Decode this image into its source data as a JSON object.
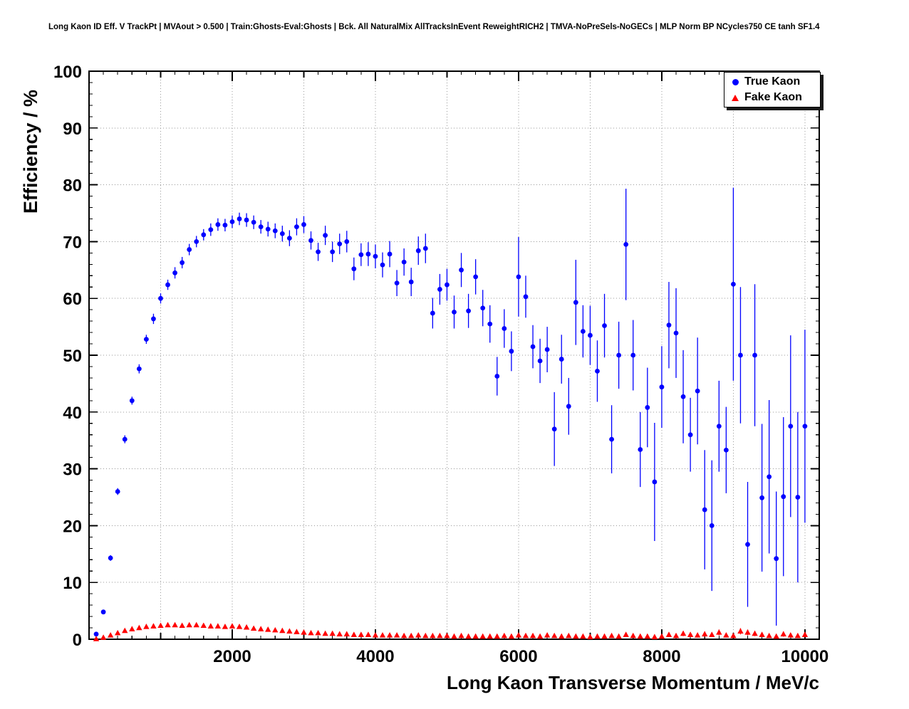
{
  "chart_data": {
    "type": "scatter",
    "title": "Long Kaon ID Eff. V TrackPt | MVAout > 0.500 | Train:Ghosts-Eval:Ghosts | Bck. All NaturalMix AllTracksInEvent ReweightRICH2 | TMVA-NoPreSels-NoGECs | MLP Norm BP NCycles750 CE tanh SF1.4",
    "xlabel": "Long Kaon Transverse Momentum / MeV/c",
    "ylabel": "Efficiency / %",
    "xlim": [
      0,
      10200
    ],
    "ylim": [
      0,
      100
    ],
    "x_ticks": [
      2000,
      4000,
      6000,
      8000,
      10000
    ],
    "y_ticks": [
      0,
      10,
      20,
      30,
      40,
      50,
      60,
      70,
      80,
      90,
      100
    ],
    "x_grid_step": 1000,
    "grid": true,
    "legend": {
      "position": "top-right",
      "entries": [
        {
          "label": "True Kaon",
          "marker": "circle",
          "color": "#0000ff"
        },
        {
          "label": "Fake Kaon",
          "marker": "triangle",
          "color": "#ff0000"
        }
      ]
    },
    "colors": {
      "true_kaon": "#0000ff",
      "fake_kaon": "#ff0000",
      "grid": "#999999",
      "frame": "#000000"
    },
    "series": [
      {
        "name": "True Kaon",
        "marker": "circle",
        "color": "#0000ff",
        "x": [
          100,
          200,
          300,
          400,
          500,
          600,
          700,
          800,
          900,
          1000,
          1100,
          1200,
          1300,
          1400,
          1500,
          1600,
          1700,
          1800,
          1900,
          2000,
          2100,
          2200,
          2300,
          2400,
          2500,
          2600,
          2700,
          2800,
          2900,
          3000,
          3100,
          3200,
          3300,
          3400,
          3500,
          3600,
          3700,
          3800,
          3900,
          4000,
          4100,
          4200,
          4300,
          4400,
          4500,
          4600,
          4700,
          4800,
          4900,
          5000,
          5100,
          5200,
          5300,
          5400,
          5500,
          5600,
          5700,
          5800,
          5900,
          6000,
          6100,
          6200,
          6300,
          6400,
          6500,
          6600,
          6700,
          6800,
          6900,
          7000,
          7100,
          7200,
          7300,
          7400,
          7500,
          7600,
          7700,
          7800,
          7900,
          8000,
          8100,
          8200,
          8300,
          8400,
          8500,
          8600,
          8700,
          8800,
          8900,
          9000,
          9100,
          9200,
          9300,
          9400,
          9500,
          9600,
          9700,
          9800,
          9900,
          10000
        ],
        "y": [
          0.9,
          4.8,
          14.3,
          26.0,
          35.2,
          42.0,
          47.6,
          52.8,
          56.4,
          60.0,
          62.4,
          64.5,
          66.3,
          68.6,
          70.0,
          71.2,
          72.1,
          73.0,
          72.9,
          73.5,
          74.0,
          73.8,
          73.4,
          72.6,
          72.2,
          71.9,
          71.4,
          70.6,
          72.6,
          73.0,
          70.2,
          68.2,
          71.1,
          68.2,
          69.6,
          70.0,
          65.2,
          67.7,
          67.8,
          67.4,
          65.9,
          67.8,
          62.7,
          66.4,
          62.9,
          68.4,
          68.8,
          57.4,
          61.6,
          62.4,
          57.6,
          65.0,
          57.8,
          63.8,
          58.3,
          55.5,
          46.3,
          54.7,
          50.7,
          63.8,
          60.3,
          51.5,
          49.0,
          51.0,
          37.0,
          49.3,
          41.0,
          59.3,
          54.2,
          53.5,
          47.2,
          55.2,
          35.2,
          50.0,
          69.5,
          50.0,
          33.4,
          40.8,
          27.7,
          44.4,
          55.3,
          53.9,
          42.7,
          36.0,
          43.7,
          22.8,
          20.0,
          37.5,
          33.3,
          62.5,
          50.0,
          16.7,
          50.0,
          24.9,
          28.6,
          14.2,
          25.1,
          37.5,
          25.0,
          37.5
        ],
        "yerr": [
          0.2,
          0.3,
          0.5,
          0.6,
          0.7,
          0.7,
          0.8,
          0.8,
          0.9,
          0.9,
          0.9,
          1.0,
          1.0,
          1.0,
          1.0,
          1.0,
          1.1,
          1.1,
          1.1,
          1.1,
          1.1,
          1.2,
          1.2,
          1.2,
          1.3,
          1.3,
          1.4,
          1.4,
          1.5,
          1.5,
          1.6,
          1.6,
          1.7,
          1.8,
          1.8,
          1.9,
          2.0,
          2.0,
          2.1,
          2.1,
          2.2,
          2.3,
          2.3,
          2.4,
          2.5,
          2.5,
          2.6,
          2.7,
          2.7,
          2.8,
          2.9,
          3.0,
          3.0,
          3.1,
          3.2,
          3.3,
          3.4,
          3.4,
          3.5,
          7.0,
          3.7,
          3.8,
          3.9,
          4.0,
          6.5,
          4.3,
          5.0,
          7.5,
          4.6,
          5.2,
          5.4,
          5.6,
          6.0,
          5.9,
          9.8,
          6.2,
          6.6,
          7.0,
          10.4,
          7.2,
          7.6,
          7.9,
          8.2,
          6.5,
          9.4,
          10.5,
          11.5,
          8.0,
          7.6,
          17.0,
          12.0,
          11.0,
          12.5,
          13.0,
          13.5,
          11.8,
          14.0,
          16.0,
          15.0,
          17.0
        ]
      },
      {
        "name": "Fake Kaon",
        "marker": "triangle",
        "color": "#ff0000",
        "x": [
          100,
          200,
          300,
          400,
          500,
          600,
          700,
          800,
          900,
          1000,
          1100,
          1200,
          1300,
          1400,
          1500,
          1600,
          1700,
          1800,
          1900,
          2000,
          2100,
          2200,
          2300,
          2400,
          2500,
          2600,
          2700,
          2800,
          2900,
          3000,
          3100,
          3200,
          3300,
          3400,
          3500,
          3600,
          3700,
          3800,
          3900,
          4000,
          4100,
          4200,
          4300,
          4400,
          4500,
          4600,
          4700,
          4800,
          4900,
          5000,
          5100,
          5200,
          5300,
          5400,
          5500,
          5600,
          5700,
          5800,
          5900,
          6000,
          6100,
          6200,
          6300,
          6400,
          6500,
          6600,
          6700,
          6800,
          6900,
          7000,
          7100,
          7200,
          7300,
          7400,
          7500,
          7600,
          7700,
          7800,
          7900,
          8000,
          8100,
          8200,
          8300,
          8400,
          8500,
          8600,
          8700,
          8800,
          8900,
          9000,
          9100,
          9200,
          9300,
          9400,
          9500,
          9600,
          9700,
          9800,
          9900,
          10000
        ],
        "y": [
          0.05,
          0.3,
          0.7,
          1.1,
          1.5,
          1.8,
          2.0,
          2.2,
          2.3,
          2.4,
          2.5,
          2.5,
          2.4,
          2.5,
          2.5,
          2.4,
          2.3,
          2.3,
          2.2,
          2.3,
          2.2,
          2.1,
          1.9,
          1.8,
          1.7,
          1.6,
          1.5,
          1.4,
          1.3,
          1.2,
          1.1,
          1.1,
          1.0,
          1.0,
          0.9,
          0.9,
          0.8,
          0.8,
          0.8,
          0.7,
          0.7,
          0.7,
          0.7,
          0.6,
          0.6,
          0.7,
          0.6,
          0.6,
          0.6,
          0.6,
          0.5,
          0.6,
          0.5,
          0.5,
          0.5,
          0.5,
          0.5,
          0.6,
          0.5,
          0.7,
          0.6,
          0.6,
          0.5,
          0.7,
          0.6,
          0.5,
          0.6,
          0.5,
          0.5,
          0.4,
          0.5,
          0.5,
          0.6,
          0.5,
          0.8,
          0.6,
          0.5,
          0.5,
          0.4,
          0.5,
          0.8,
          0.6,
          1.0,
          0.8,
          0.7,
          0.9,
          0.8,
          1.2,
          0.7,
          0.6,
          1.4,
          1.2,
          1.0,
          0.8,
          0.6,
          0.5,
          0.9,
          0.7,
          0.6,
          0.8
        ],
        "yerr": [
          0.05,
          0.05,
          0.1,
          0.1,
          0.1,
          0.1,
          0.1,
          0.1,
          0.1,
          0.1,
          0.1,
          0.1,
          0.1,
          0.1,
          0.1,
          0.1,
          0.1,
          0.1,
          0.1,
          0.1,
          0.1,
          0.1,
          0.1,
          0.1,
          0.1,
          0.1,
          0.1,
          0.15,
          0.15,
          0.15,
          0.15,
          0.15,
          0.15,
          0.15,
          0.15,
          0.15,
          0.15,
          0.15,
          0.15,
          0.15,
          0.15,
          0.15,
          0.15,
          0.15,
          0.15,
          0.2,
          0.2,
          0.2,
          0.2,
          0.2,
          0.2,
          0.2,
          0.2,
          0.2,
          0.2,
          0.2,
          0.2,
          0.2,
          0.2,
          0.25,
          0.25,
          0.25,
          0.25,
          0.25,
          0.25,
          0.25,
          0.25,
          0.25,
          0.25,
          0.25,
          0.3,
          0.3,
          0.3,
          0.3,
          0.35,
          0.3,
          0.3,
          0.3,
          0.3,
          0.3,
          0.4,
          0.35,
          0.45,
          0.4,
          0.4,
          0.45,
          0.4,
          0.5,
          0.4,
          0.35,
          0.55,
          0.5,
          0.45,
          0.4,
          0.35,
          0.3,
          0.45,
          0.4,
          0.35,
          0.45
        ]
      }
    ]
  }
}
